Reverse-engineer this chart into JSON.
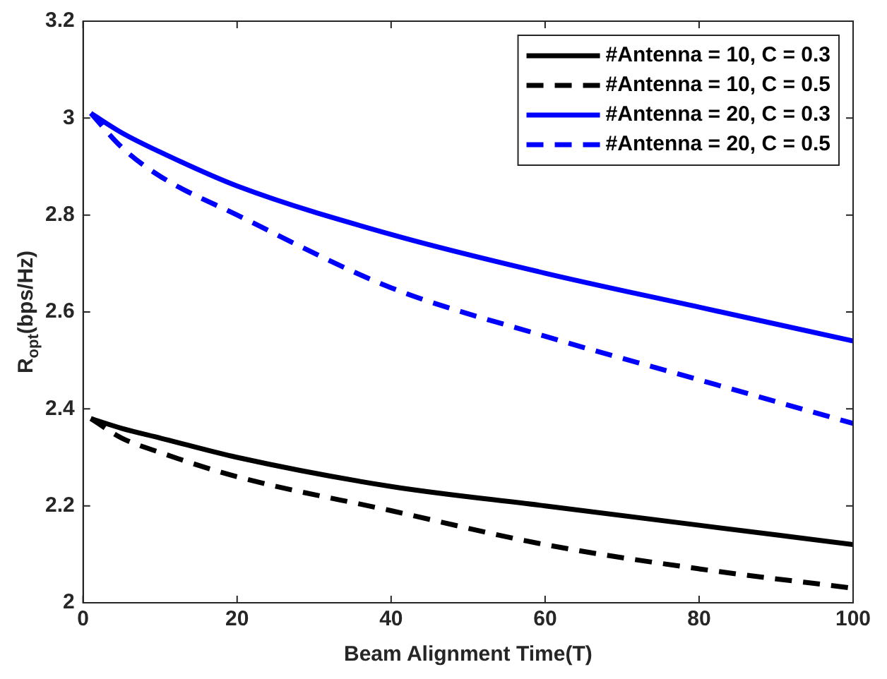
{
  "chart_data": {
    "type": "line",
    "xlabel": "Beam Alignment Time(T)",
    "ylabel": "R$_{opt}$(bps/Hz)",
    "xlim": [
      0,
      100
    ],
    "xticks": [
      0,
      20,
      40,
      60,
      80,
      100
    ],
    "ylim": [
      2,
      3.2
    ],
    "yticks": [
      2,
      2.2,
      2.4,
      2.6,
      2.8,
      3,
      3.2
    ],
    "grid": false,
    "legend": "top right",
    "marker": "none",
    "series": [
      {
        "name": "#Antenna = 10, C = 0.3",
        "color": "#000000",
        "line_style": "solid",
        "x": [
          1,
          5,
          10,
          20,
          40,
          60,
          80,
          100
        ],
        "values": [
          2.38,
          2.36,
          2.34,
          2.3,
          2.24,
          2.2,
          2.16,
          2.12
        ]
      },
      {
        "name": "#Antenna = 10, C = 0.5",
        "color": "#000000",
        "line_style": "dashed",
        "x": [
          1,
          5,
          10,
          20,
          40,
          60,
          80,
          100
        ],
        "values": [
          2.38,
          2.34,
          2.31,
          2.26,
          2.19,
          2.12,
          2.07,
          2.03
        ]
      },
      {
        "name": "#Antenna = 20, C = 0.3",
        "color": "#0000ff",
        "line_style": "solid",
        "x": [
          1,
          5,
          10,
          20,
          40,
          60,
          80,
          100
        ],
        "values": [
          3.01,
          2.97,
          2.93,
          2.86,
          2.76,
          2.68,
          2.61,
          2.54
        ]
      },
      {
        "name": "#Antenna = 20, C = 0.5",
        "color": "#0000ff",
        "line_style": "dashed",
        "x": [
          1,
          5,
          10,
          20,
          40,
          60,
          80,
          100
        ],
        "values": [
          3.01,
          2.94,
          2.88,
          2.8,
          2.65,
          2.55,
          2.46,
          2.37
        ]
      }
    ]
  }
}
